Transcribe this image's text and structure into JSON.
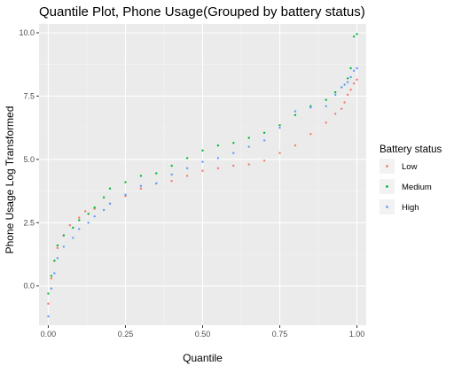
{
  "chart_data": {
    "type": "scatter",
    "title": "Quantile Plot, Phone Usage(Grouped by battery status)",
    "xlabel": "Quantile",
    "ylabel": "Phone Usage Log Transformed",
    "xlim": [
      -0.03,
      1.03
    ],
    "ylim": [
      -1.55,
      10.35
    ],
    "x_ticks": [
      0.0,
      0.25,
      0.5,
      0.75,
      1.0
    ],
    "x_tick_labels": [
      "0.00",
      "0.25",
      "0.50",
      "0.75",
      "1.00"
    ],
    "y_ticks": [
      0.0,
      2.5,
      5.0,
      7.5,
      10.0
    ],
    "y_tick_labels": [
      "0.0",
      "2.5",
      "5.0",
      "7.5",
      "10.0"
    ],
    "grid": true,
    "legend": {
      "title": "Battery status",
      "position": "right"
    },
    "series": [
      {
        "name": "Low",
        "color": "#F8766D",
        "x": [
          0.0,
          0.01,
          0.02,
          0.03,
          0.05,
          0.07,
          0.1,
          0.12,
          0.15,
          0.2,
          0.25,
          0.3,
          0.35,
          0.4,
          0.45,
          0.5,
          0.55,
          0.6,
          0.65,
          0.7,
          0.75,
          0.8,
          0.85,
          0.9,
          0.93,
          0.95,
          0.96,
          0.97,
          0.98,
          0.99,
          1.0
        ],
        "y": [
          -0.7,
          0.3,
          1.0,
          1.5,
          2.0,
          2.4,
          2.7,
          2.95,
          3.05,
          3.25,
          3.55,
          3.85,
          4.05,
          4.15,
          4.35,
          4.55,
          4.65,
          4.75,
          4.8,
          4.95,
          5.25,
          5.55,
          6.0,
          6.45,
          6.8,
          7.0,
          7.25,
          7.55,
          7.75,
          8.0,
          8.15
        ]
      },
      {
        "name": "Medium",
        "color": "#00BA38",
        "x": [
          0.0,
          0.01,
          0.02,
          0.03,
          0.05,
          0.08,
          0.1,
          0.13,
          0.15,
          0.18,
          0.2,
          0.25,
          0.3,
          0.35,
          0.4,
          0.45,
          0.5,
          0.55,
          0.6,
          0.65,
          0.7,
          0.75,
          0.8,
          0.85,
          0.9,
          0.93,
          0.95,
          0.97,
          0.98,
          0.99,
          1.0
        ],
        "y": [
          -0.3,
          0.4,
          1.0,
          1.6,
          2.0,
          2.3,
          2.6,
          2.85,
          3.1,
          3.5,
          3.85,
          4.1,
          4.35,
          4.45,
          4.75,
          5.05,
          5.35,
          5.55,
          5.65,
          5.85,
          6.05,
          6.35,
          6.75,
          7.1,
          7.35,
          7.65,
          7.85,
          8.2,
          8.6,
          9.85,
          9.95
        ]
      },
      {
        "name": "High",
        "color": "#619CFF",
        "x": [
          0.0,
          0.01,
          0.02,
          0.03,
          0.05,
          0.08,
          0.1,
          0.13,
          0.15,
          0.18,
          0.2,
          0.25,
          0.3,
          0.35,
          0.4,
          0.45,
          0.5,
          0.55,
          0.6,
          0.65,
          0.7,
          0.75,
          0.8,
          0.85,
          0.9,
          0.93,
          0.95,
          0.96,
          0.97,
          0.98,
          0.99,
          1.0
        ],
        "y": [
          -1.2,
          -0.1,
          0.5,
          1.1,
          1.55,
          1.9,
          2.25,
          2.5,
          2.75,
          3.0,
          3.25,
          3.6,
          3.95,
          4.05,
          4.4,
          4.65,
          4.9,
          5.05,
          5.25,
          5.5,
          5.75,
          6.25,
          6.9,
          7.05,
          7.1,
          7.55,
          7.85,
          7.95,
          8.05,
          8.25,
          8.5,
          8.6
        ]
      }
    ]
  }
}
